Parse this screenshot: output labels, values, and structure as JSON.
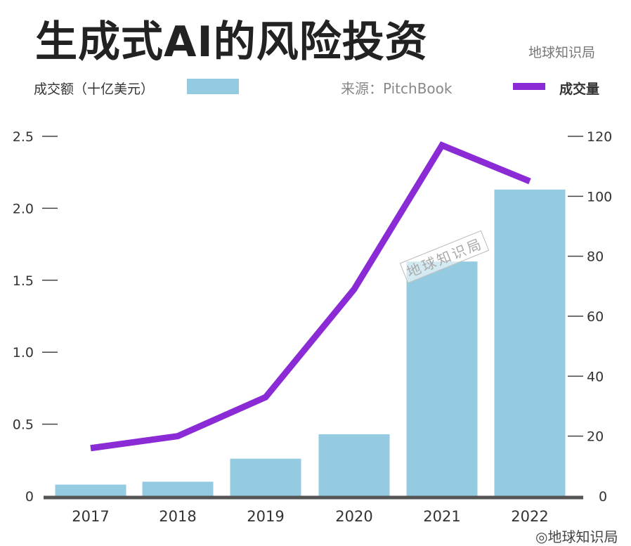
{
  "chart_data": {
    "type": "bar+line",
    "title": "生成式AI的风险投资",
    "brand": "地球知识局",
    "source": "来源：PitchBook",
    "categories": [
      "2017",
      "2018",
      "2019",
      "2020",
      "2021",
      "2022"
    ],
    "series": [
      {
        "name": "成交额（十亿美元）",
        "type": "bar",
        "axis": "left",
        "color": "#94cbe1",
        "values": [
          0.08,
          0.1,
          0.26,
          0.43,
          1.63,
          2.13
        ]
      },
      {
        "name": "成交量",
        "type": "line",
        "axis": "right",
        "color": "#8a2bd6",
        "values": [
          16,
          20,
          33,
          69,
          117,
          105
        ]
      }
    ],
    "left_axis": {
      "ylim": [
        0,
        2.5
      ],
      "ticks": [
        "0",
        "0.5",
        "1.0",
        "1.5",
        "2.0",
        "2.5"
      ]
    },
    "right_axis": {
      "ylim": [
        0,
        120
      ],
      "ticks": [
        "0",
        "20",
        "40",
        "60",
        "80",
        "100",
        "120"
      ]
    },
    "watermark": "地球知识局"
  }
}
